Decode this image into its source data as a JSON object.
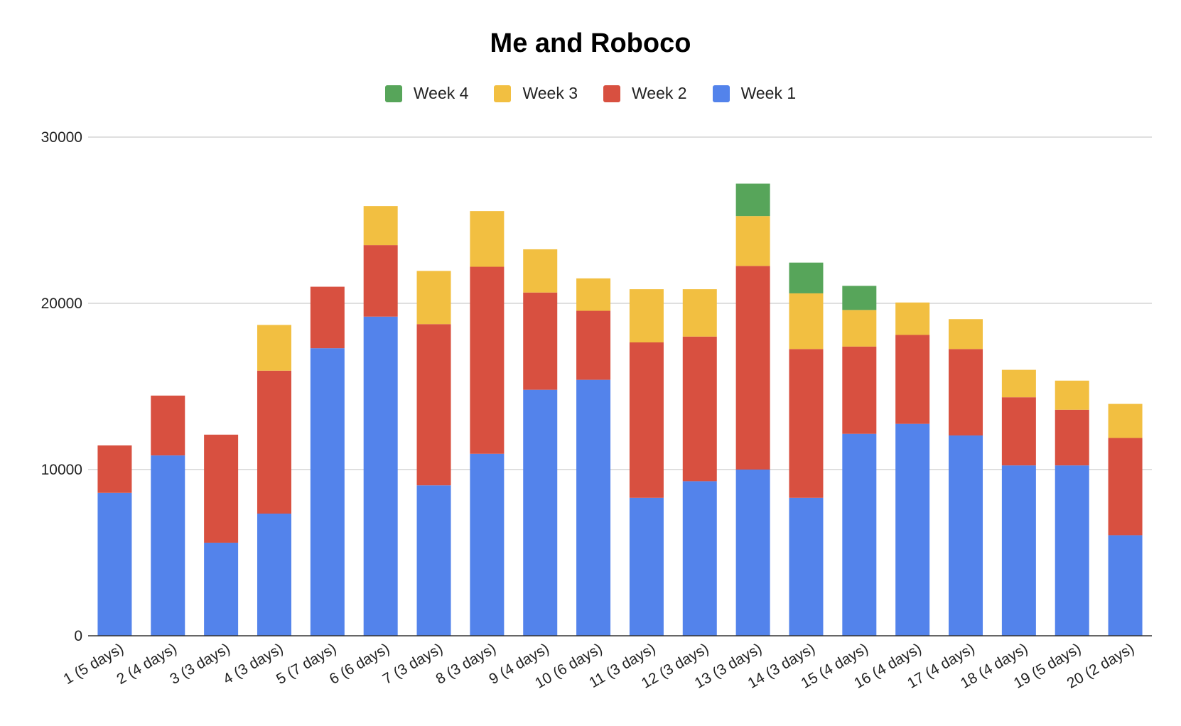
{
  "chart_data": {
    "type": "bar",
    "stacked": true,
    "title": "Me and Roboco",
    "xlabel": "",
    "ylabel": "",
    "ylim": [
      0,
      30000
    ],
    "yticks": [
      0,
      10000,
      20000,
      30000
    ],
    "grid": true,
    "legend_position": "top",
    "legend_order": [
      "Week 4",
      "Week 3",
      "Week 2",
      "Week 1"
    ],
    "categories": [
      "1 (5 days)",
      "2 (4 days)",
      "3 (3 days)",
      "4 (3 days)",
      "5 (7 days)",
      "6 (6 days)",
      "7 (3 days)",
      "8 (3 days)",
      "9 (4 days)",
      "10 (6 days)",
      "11 (3 days)",
      "12 (3 days)",
      "13 (3 days)",
      "14 (3 days)",
      "15 (4 days)",
      "16 (4 days)",
      "17 (4 days)",
      "18 (4 days)",
      "19 (5 days)",
      "20 (2 days)"
    ],
    "series": [
      {
        "name": "Week 1",
        "color": "#5383EB",
        "values": [
          8600,
          10850,
          5600,
          7350,
          17300,
          19200,
          9050,
          10950,
          14800,
          15400,
          8300,
          9300,
          10000,
          8300,
          12150,
          12750,
          12050,
          10250,
          10250,
          6050
        ]
      },
      {
        "name": "Week 2",
        "color": "#D85040",
        "values": [
          2850,
          3600,
          6500,
          8600,
          3700,
          4300,
          9700,
          11250,
          5850,
          4150,
          9350,
          8700,
          12250,
          8950,
          5250,
          5350,
          5200,
          4100,
          3350,
          5850
        ]
      },
      {
        "name": "Week 3",
        "color": "#F2BF41",
        "values": [
          0,
          0,
          0,
          2750,
          0,
          2350,
          3200,
          3350,
          2600,
          1950,
          3200,
          2850,
          3000,
          3350,
          2200,
          1950,
          1800,
          1650,
          1750,
          2050
        ]
      },
      {
        "name": "Week 4",
        "color": "#57A55A",
        "values": [
          0,
          0,
          0,
          0,
          0,
          0,
          0,
          0,
          0,
          0,
          0,
          0,
          1950,
          1850,
          1450,
          0,
          0,
          0,
          0,
          0
        ]
      }
    ]
  }
}
